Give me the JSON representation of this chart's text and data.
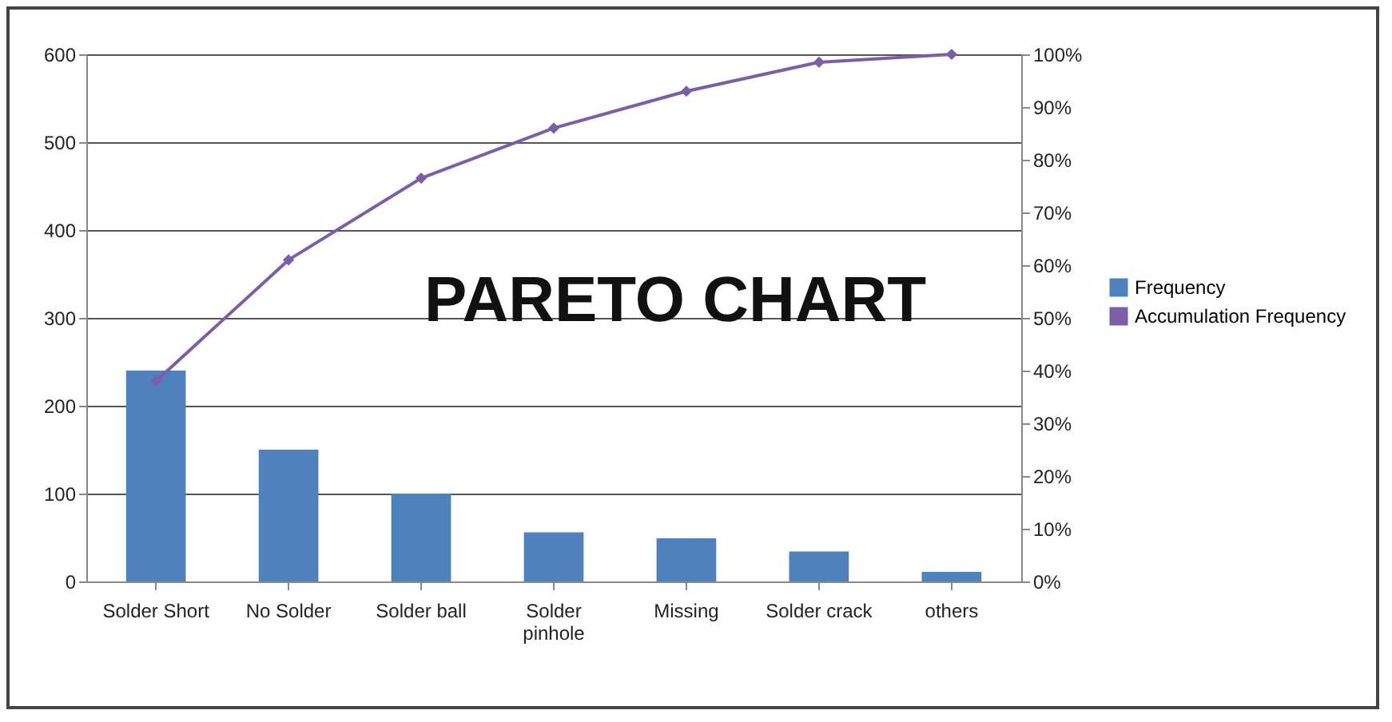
{
  "chart_data": {
    "type": "bar",
    "annotations": [
      "PARETO CHART"
    ],
    "categories": [
      "Solder Short",
      "No Solder",
      "Solder ball",
      "Solder pinhole",
      "Missing",
      "Solder crack",
      "others"
    ],
    "series": [
      {
        "name": "Frequency",
        "color": "#4f81bd",
        "values": [
          240,
          150,
          100,
          56,
          49,
          34,
          11
        ]
      },
      {
        "name": "Accumulation Frequency",
        "type": "line",
        "axis": "y2",
        "color": "#7b5ea7",
        "values": [
          38,
          61,
          76.5,
          86,
          93,
          98.5,
          100
        ]
      }
    ],
    "ylim": [
      0,
      600
    ],
    "yticks": [
      0,
      100,
      200,
      300,
      400,
      500,
      600
    ],
    "y2lim": [
      0,
      100
    ],
    "y2ticks": [
      {
        "value": 0,
        "label": "0%"
      },
      {
        "value": 10,
        "label": "10%"
      },
      {
        "value": 20,
        "label": "20%"
      },
      {
        "value": 30,
        "label": "30%"
      },
      {
        "value": 40,
        "label": "40%"
      },
      {
        "value": 50,
        "label": "50%"
      },
      {
        "value": 60,
        "label": "60%"
      },
      {
        "value": 70,
        "label": "70%"
      },
      {
        "value": 80,
        "label": "80%"
      },
      {
        "value": 90,
        "label": "90%"
      },
      {
        "value": 100,
        "label": "100%"
      }
    ],
    "grid": "y",
    "legend": "right",
    "marker": "diamond",
    "line_style": "solid"
  }
}
